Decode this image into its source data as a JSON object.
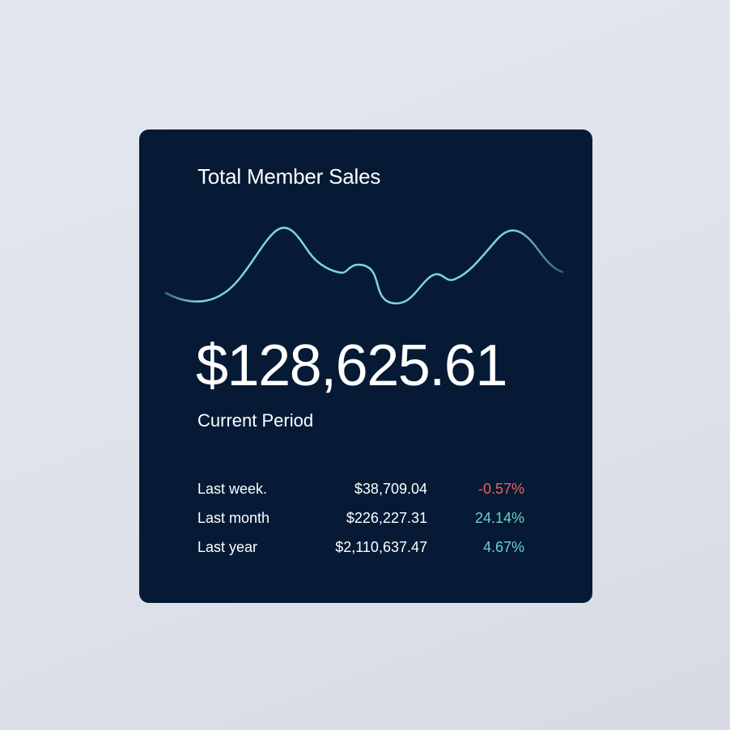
{
  "card": {
    "title": "Total Member Sales",
    "value": "$128,625.61",
    "caption": "Current Period",
    "rows": [
      {
        "label": "Last week.",
        "value": "$38,709.04",
        "change": "-0.57%",
        "trend": "negative"
      },
      {
        "label": "Last month",
        "value": "$226,227.31",
        "change": "24.14%",
        "trend": "positive"
      },
      {
        "label": "Last year",
        "value": "$2,110,637.47",
        "change": "4.67%",
        "trend": "positive"
      }
    ]
  },
  "colors": {
    "card_background": "#061a36",
    "page_background": "#e1e4ec",
    "sparkline": "#7fd6d3",
    "positive": "#6fcfc6",
    "negative": "#f0605a",
    "text": "#ffffff"
  }
}
